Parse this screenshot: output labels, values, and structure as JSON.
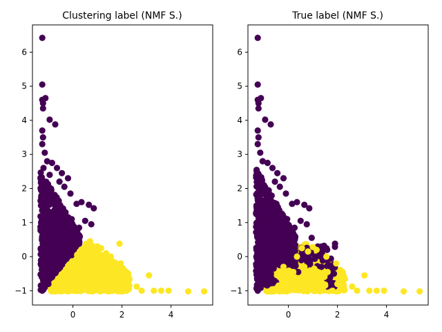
{
  "colors": {
    "cluster_a": "#440154",
    "cluster_b": "#fde725"
  },
  "chart_data": [
    {
      "type": "scatter",
      "title": "Clustering label (NMF S.)",
      "xlabel": "",
      "ylabel": "",
      "xlim": [
        -1.65,
        5.7
      ],
      "ylim": [
        -1.42,
        6.8
      ],
      "xticks": [
        0,
        2,
        4
      ],
      "yticks": [
        -1,
        0,
        1,
        2,
        3,
        4,
        5,
        6
      ],
      "grid": false,
      "series": [
        {
          "color": "#440154",
          "points": [
            [
              -1.25,
              6.42
            ],
            [
              -1.25,
              5.05
            ],
            [
              -1.25,
              4.6
            ],
            [
              -1.12,
              4.65
            ],
            [
              -1.22,
              4.5
            ],
            [
              -1.22,
              4.35
            ],
            [
              -0.95,
              4.02
            ],
            [
              -0.72,
              3.88
            ],
            [
              -1.25,
              3.7
            ],
            [
              -1.22,
              3.5
            ],
            [
              -1.25,
              3.3
            ],
            [
              -1.15,
              3.05
            ],
            [
              -1.05,
              2.8
            ],
            [
              -0.85,
              2.75
            ],
            [
              -0.65,
              2.6
            ],
            [
              -0.45,
              2.45
            ],
            [
              -0.2,
              2.3
            ],
            [
              -0.55,
              2.2
            ],
            [
              -0.35,
              2.05
            ],
            [
              -0.1,
              1.85
            ],
            [
              0.15,
              1.55
            ],
            [
              0.35,
              1.6
            ],
            [
              0.65,
              1.52
            ],
            [
              0.85,
              1.42
            ],
            [
              0.5,
              1.05
            ],
            [
              0.75,
              0.95
            ],
            [
              -0.05,
              1.1
            ],
            [
              0.25,
              0.85
            ],
            [
              -0.3,
              0.6
            ],
            [
              0.05,
              0.45
            ],
            [
              -0.45,
              0.1
            ],
            [
              -0.25,
              -0.05
            ],
            [
              -0.6,
              -0.35
            ],
            [
              -0.85,
              -0.6
            ],
            [
              -1.0,
              -0.8
            ],
            [
              -1.25,
              -1.0
            ],
            [
              -1.15,
              -0.9
            ],
            [
              -1.05,
              -0.4
            ],
            [
              -1.3,
              0.2
            ],
            [
              -1.2,
              1.0
            ],
            [
              -1.3,
              1.5
            ],
            [
              -1.1,
              2.0
            ],
            [
              -0.9,
              1.7
            ],
            [
              -0.75,
              1.2
            ],
            [
              -0.8,
              0.5
            ],
            [
              -0.6,
              0.9
            ],
            [
              -0.4,
              1.4
            ],
            [
              -0.95,
              2.4
            ],
            [
              -1.2,
              2.6
            ],
            [
              -0.7,
              0.0
            ],
            [
              -1.25,
              -0.3
            ]
          ]
        },
        {
          "color": "#fde725",
          "points": [
            [
              -0.9,
              -1.0
            ],
            [
              -0.6,
              -0.85
            ],
            [
              -0.3,
              -0.7
            ],
            [
              0.0,
              -0.5
            ],
            [
              0.2,
              -0.2
            ],
            [
              0.35,
              0.1
            ],
            [
              0.5,
              0.3
            ],
            [
              0.7,
              0.45
            ],
            [
              1.0,
              0.3
            ],
            [
              1.15,
              0.25
            ],
            [
              1.35,
              0.1
            ],
            [
              1.55,
              0.0
            ],
            [
              1.9,
              0.38
            ],
            [
              1.95,
              -0.2
            ],
            [
              1.6,
              -0.45
            ],
            [
              1.25,
              -0.6
            ],
            [
              0.9,
              -0.85
            ],
            [
              0.6,
              -1.0
            ],
            [
              1.2,
              -1.0
            ],
            [
              1.8,
              -1.0
            ],
            [
              2.3,
              -0.65
            ],
            [
              2.6,
              -0.88
            ],
            [
              2.8,
              -1.0
            ],
            [
              3.1,
              -0.55
            ],
            [
              3.3,
              -1.0
            ],
            [
              3.6,
              -1.0
            ],
            [
              3.9,
              -1.0
            ],
            [
              4.7,
              -1.02
            ],
            [
              5.35,
              -1.02
            ],
            [
              0.3,
              -0.9
            ],
            [
              0.05,
              -0.2
            ],
            [
              -0.15,
              -0.45
            ],
            [
              0.45,
              -0.3
            ],
            [
              0.8,
              0.0
            ],
            [
              1.05,
              -0.3
            ],
            [
              1.4,
              -0.85
            ],
            [
              2.0,
              -0.8
            ],
            [
              0.6,
              0.1
            ]
          ]
        }
      ]
    },
    {
      "type": "scatter",
      "title": "True label (NMF S.)",
      "xlabel": "",
      "ylabel": "",
      "xlim": [
        -1.65,
        5.7
      ],
      "ylim": [
        -1.42,
        6.8
      ],
      "xticks": [
        0,
        2,
        4
      ],
      "yticks": [
        -1,
        0,
        1,
        2,
        3,
        4,
        5,
        6
      ],
      "grid": false,
      "series": [
        {
          "color": "#440154",
          "points": [
            [
              -1.25,
              6.42
            ],
            [
              -1.25,
              5.05
            ],
            [
              -1.25,
              4.6
            ],
            [
              -1.12,
              4.65
            ],
            [
              -1.22,
              4.5
            ],
            [
              -1.22,
              4.35
            ],
            [
              -0.95,
              4.02
            ],
            [
              -0.72,
              3.88
            ],
            [
              -1.25,
              3.7
            ],
            [
              -1.22,
              3.5
            ],
            [
              -1.25,
              3.3
            ],
            [
              -1.15,
              3.05
            ],
            [
              -1.05,
              2.8
            ],
            [
              -0.85,
              2.75
            ],
            [
              -0.65,
              2.6
            ],
            [
              -0.45,
              2.45
            ],
            [
              -0.2,
              2.3
            ],
            [
              -0.55,
              2.2
            ],
            [
              -0.35,
              2.05
            ],
            [
              -0.1,
              1.85
            ],
            [
              0.15,
              1.55
            ],
            [
              0.35,
              1.6
            ],
            [
              0.65,
              1.52
            ],
            [
              0.85,
              1.42
            ],
            [
              0.5,
              1.05
            ],
            [
              0.75,
              0.95
            ],
            [
              -0.05,
              1.1
            ],
            [
              0.25,
              0.85
            ],
            [
              -0.3,
              0.6
            ],
            [
              0.05,
              0.45
            ],
            [
              0.95,
              0.55
            ],
            [
              1.2,
              0.3
            ],
            [
              1.45,
              0.32
            ],
            [
              1.9,
              0.38
            ],
            [
              1.1,
              0.0
            ],
            [
              1.35,
              -0.3
            ],
            [
              0.9,
              -0.1
            ],
            [
              0.4,
              -0.45
            ],
            [
              -0.45,
              0.1
            ],
            [
              -0.6,
              -0.35
            ],
            [
              -0.85,
              -0.6
            ],
            [
              -1.0,
              -0.8
            ],
            [
              -1.25,
              -1.0
            ],
            [
              -1.15,
              -0.9
            ],
            [
              -1.3,
              0.2
            ],
            [
              -1.2,
              1.0
            ],
            [
              -1.3,
              1.5
            ],
            [
              -1.1,
              2.0
            ],
            [
              -0.9,
              1.7
            ],
            [
              -0.75,
              1.2
            ],
            [
              -0.8,
              0.5
            ],
            [
              -1.25,
              -0.3
            ],
            [
              -0.5,
              -0.75
            ],
            [
              0.1,
              -0.2
            ]
          ]
        },
        {
          "color": "#fde725",
          "points": [
            [
              -0.7,
              -1.0
            ],
            [
              -0.4,
              -0.85
            ],
            [
              -0.1,
              -0.6
            ],
            [
              0.2,
              -0.45
            ],
            [
              0.35,
              0.0
            ],
            [
              0.55,
              0.25
            ],
            [
              0.8,
              0.15
            ],
            [
              1.0,
              0.28
            ],
            [
              1.15,
              0.2
            ],
            [
              1.55,
              0.0
            ],
            [
              1.95,
              -0.2
            ],
            [
              1.6,
              -0.45
            ],
            [
              1.25,
              -0.6
            ],
            [
              0.9,
              -0.85
            ],
            [
              0.6,
              -1.0
            ],
            [
              1.2,
              -1.0
            ],
            [
              1.8,
              -1.0
            ],
            [
              2.3,
              -0.65
            ],
            [
              2.6,
              -0.88
            ],
            [
              2.8,
              -1.0
            ],
            [
              3.1,
              -0.55
            ],
            [
              3.3,
              -1.0
            ],
            [
              3.6,
              -1.0
            ],
            [
              3.9,
              -1.0
            ],
            [
              4.7,
              -1.02
            ],
            [
              5.35,
              -1.02
            ],
            [
              0.3,
              -0.9
            ],
            [
              0.65,
              -0.3
            ],
            [
              1.05,
              -0.35
            ],
            [
              1.4,
              -0.85
            ],
            [
              2.0,
              -0.8
            ],
            [
              -0.2,
              -0.3
            ],
            [
              0.0,
              -0.8
            ]
          ]
        }
      ]
    }
  ]
}
